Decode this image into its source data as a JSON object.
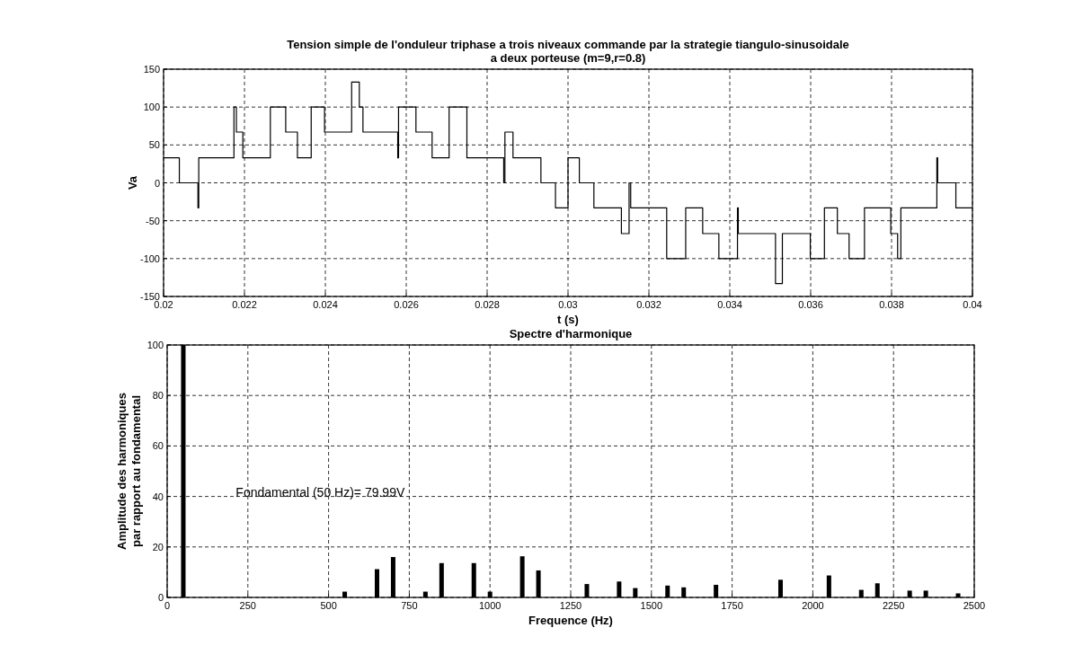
{
  "chart_data": [
    {
      "type": "step",
      "title": "Tension simple de l'onduleur triphase a trois niveaux commande par la strategie tiangulo-sinusoidale\na deux porteuse (m=9,r=0.8)",
      "xlabel": "t (s)",
      "ylabel": "Va",
      "x": [
        0.02,
        0.02039,
        0.02085,
        0.02087,
        0.02174,
        0.0218,
        0.02196,
        0.02264,
        0.02302,
        0.02331,
        0.02365,
        0.02398,
        0.02465,
        0.02484,
        0.02493,
        0.02579,
        0.02581,
        0.02624,
        0.02664,
        0.02706,
        0.0275,
        0.02841,
        0.02844,
        0.02864,
        0.02933,
        0.02969,
        0.03,
        0.03028,
        0.03064,
        0.03132,
        0.03151,
        0.03155,
        0.03244,
        0.03291,
        0.03333,
        0.03373,
        0.03419,
        0.03421,
        0.03513,
        0.0353,
        0.03599,
        0.03634,
        0.03666,
        0.03695,
        0.03733,
        0.03798,
        0.03815,
        0.03823,
        0.03912,
        0.03914,
        0.03959,
        0.04
      ],
      "series": [
        {
          "color": "#000000",
          "values": [
            33,
            0,
            -33,
            33,
            100,
            67,
            33,
            100,
            67,
            33,
            100,
            67,
            133,
            100,
            67,
            33,
            100,
            67,
            33,
            100,
            33,
            0,
            67,
            33,
            0,
            -33,
            33,
            0,
            -33,
            -67,
            0,
            -33,
            -100,
            -33,
            -67,
            -100,
            -33,
            -67,
            -133,
            -67,
            -100,
            -33,
            -67,
            -100,
            -33,
            -67,
            -100,
            -33,
            33,
            0,
            -33,
            -33
          ]
        }
      ],
      "xlim": [
        0.02,
        0.04
      ],
      "xticks": [
        0.02,
        0.022,
        0.024,
        0.026,
        0.028,
        0.03,
        0.032,
        0.034,
        0.036,
        0.038,
        0.04
      ],
      "ylim": [
        -150,
        150
      ],
      "yticks": [
        -150,
        -100,
        -50,
        0,
        50,
        100,
        150
      ],
      "grid": true
    },
    {
      "type": "bar",
      "title": "Spectre d'harmonique",
      "xlabel": "Frequence (Hz)",
      "ylabel": "Amplitude des harmoniques\npar rapport au fondamental",
      "x": [
        50,
        550,
        650,
        700,
        800,
        850,
        950,
        1000,
        1100,
        1150,
        1300,
        1400,
        1450,
        1550,
        1600,
        1700,
        1900,
        2050,
        2150,
        2200,
        2300,
        2350,
        2450
      ],
      "series": [
        {
          "color": "#000000",
          "values": [
            100,
            2.3,
            11.2,
            16,
            2.3,
            13.6,
            13.6,
            2.3,
            16.3,
            10.7,
            5.3,
            6.3,
            3.7,
            4.7,
            4,
            5,
            7,
            8.7,
            3,
            5.6,
            2.7,
            2.7,
            1.6
          ]
        }
      ],
      "xlim": [
        0,
        2500
      ],
      "xticks": [
        0,
        250,
        500,
        750,
        1000,
        1250,
        1500,
        1750,
        2000,
        2250,
        2500
      ],
      "ylim": [
        0,
        100
      ],
      "yticks": [
        0,
        20,
        40,
        60,
        80,
        100
      ],
      "grid": true,
      "annotations": [
        "Fondamental (50 Hz)= 79.99V"
      ]
    }
  ]
}
